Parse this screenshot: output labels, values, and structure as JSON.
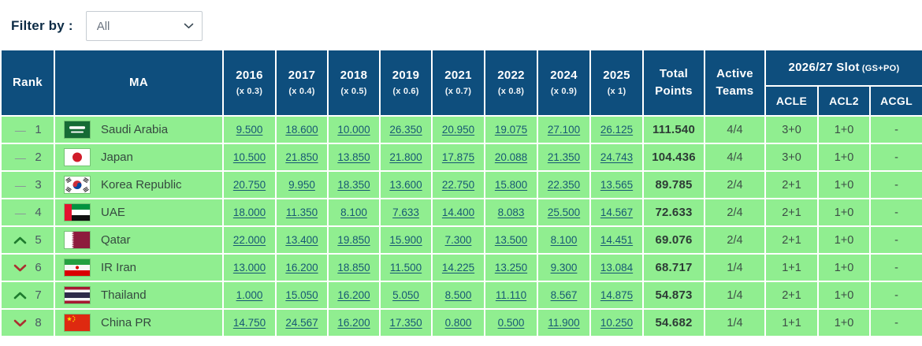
{
  "filter": {
    "label": "Filter by :",
    "selected": "All",
    "options": [
      "All"
    ]
  },
  "colors": {
    "header_bg": "#0e4e7d",
    "row_bg": "#90ee90",
    "link": "#175873",
    "trend_up": "#1e7b2e",
    "trend_down": "#ab3030"
  },
  "table": {
    "headers": {
      "rank": "Rank",
      "ma": "MA",
      "years": [
        {
          "year": "2016",
          "mult": "(x 0.3)"
        },
        {
          "year": "2017",
          "mult": "(x 0.4)"
        },
        {
          "year": "2018",
          "mult": "(x 0.5)"
        },
        {
          "year": "2019",
          "mult": "(x 0.6)"
        },
        {
          "year": "2021",
          "mult": "(x 0.7)"
        },
        {
          "year": "2022",
          "mult": "(x 0.8)"
        },
        {
          "year": "2024",
          "mult": "(x 0.9)"
        },
        {
          "year": "2025",
          "mult": "(x 1)"
        }
      ],
      "total": "Total Points",
      "active": "Active Teams",
      "slot_group": "2026/27 Slot",
      "slot_group_note": "(GS+PO)",
      "slot_cols": [
        "ACLE",
        "ACL2",
        "ACGL"
      ]
    },
    "rows": [
      {
        "trend": "same",
        "rank": "1",
        "flag": "flag-saudi-arabia",
        "country": "Saudi Arabia",
        "values": [
          "9.500",
          "18.600",
          "10.000",
          "26.350",
          "20.950",
          "19.075",
          "27.100",
          "26.125"
        ],
        "total": "111.540",
        "active": "4/4",
        "acle": "3+0",
        "acl2": "1+0",
        "acgl": "-"
      },
      {
        "trend": "same",
        "rank": "2",
        "flag": "flag-japan",
        "country": "Japan",
        "values": [
          "10.500",
          "21.850",
          "13.850",
          "21.800",
          "17.875",
          "20.088",
          "21.350",
          "24.743"
        ],
        "total": "104.436",
        "active": "4/4",
        "acle": "3+0",
        "acl2": "1+0",
        "acgl": "-"
      },
      {
        "trend": "same",
        "rank": "3",
        "flag": "flag-korea-republic",
        "country": "Korea Republic",
        "values": [
          "20.750",
          "9.950",
          "18.350",
          "13.600",
          "22.750",
          "15.800",
          "22.350",
          "13.565"
        ],
        "total": "89.785",
        "active": "2/4",
        "acle": "2+1",
        "acl2": "1+0",
        "acgl": "-"
      },
      {
        "trend": "same",
        "rank": "4",
        "flag": "flag-uae",
        "country": "UAE",
        "values": [
          "18.000",
          "11.350",
          "8.100",
          "7.633",
          "14.400",
          "8.083",
          "25.500",
          "14.567"
        ],
        "total": "72.633",
        "active": "2/4",
        "acle": "2+1",
        "acl2": "1+0",
        "acgl": "-"
      },
      {
        "trend": "up",
        "rank": "5",
        "flag": "flag-qatar",
        "country": "Qatar",
        "values": [
          "22.000",
          "13.400",
          "19.850",
          "15.900",
          "7.300",
          "13.500",
          "8.100",
          "14.451"
        ],
        "total": "69.076",
        "active": "2/4",
        "acle": "2+1",
        "acl2": "1+0",
        "acgl": "-"
      },
      {
        "trend": "down",
        "rank": "6",
        "flag": "flag-ir-iran",
        "country": "IR Iran",
        "values": [
          "13.000",
          "16.200",
          "18.850",
          "11.500",
          "14.225",
          "13.250",
          "9.300",
          "13.084"
        ],
        "total": "68.717",
        "active": "1/4",
        "acle": "1+1",
        "acl2": "1+0",
        "acgl": "-"
      },
      {
        "trend": "up",
        "rank": "7",
        "flag": "flag-thailand",
        "country": "Thailand",
        "values": [
          "1.000",
          "15.050",
          "16.200",
          "5.050",
          "8.500",
          "11.110",
          "8.567",
          "14.875"
        ],
        "total": "54.873",
        "active": "1/4",
        "acle": "2+1",
        "acl2": "1+0",
        "acgl": "-"
      },
      {
        "trend": "down",
        "rank": "8",
        "flag": "flag-china-pr",
        "country": "China PR",
        "values": [
          "14.750",
          "24.567",
          "16.200",
          "17.350",
          "0.800",
          "0.500",
          "11.900",
          "10.250"
        ],
        "total": "54.682",
        "active": "1/4",
        "acle": "1+1",
        "acl2": "1+0",
        "acgl": "-"
      }
    ]
  }
}
